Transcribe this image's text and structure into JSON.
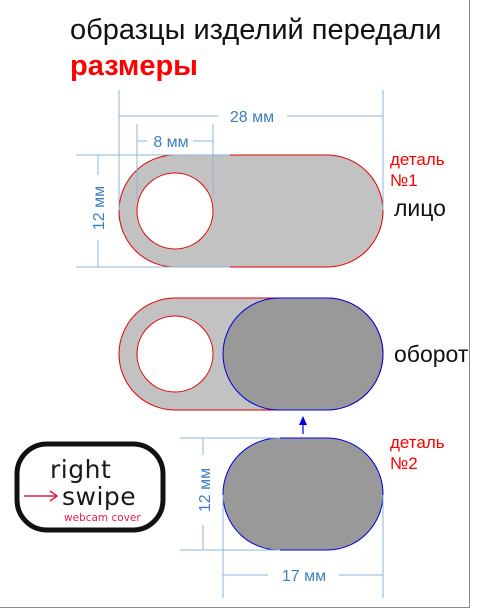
{
  "title": {
    "line1": "образцы изделий передали",
    "line2": "размеры"
  },
  "dimensions": {
    "total_length": "28 мм",
    "hole_offset": "8 мм",
    "height_front": "12 мм",
    "height_slider": "12 мм",
    "slider_length": "17 мм"
  },
  "parts": {
    "part1_label_line1": "деталь",
    "part1_label_line2": "№1",
    "part2_label_line1": "деталь",
    "part2_label_line2": "№2"
  },
  "sides": {
    "front": "лицо",
    "back": "оборот"
  },
  "logo": {
    "word1": "right",
    "word2": "swipe",
    "subtitle": "webcam cover",
    "accent_color": "#e0204f"
  },
  "colors": {
    "light_gray": "#c2c2c2",
    "dark_gray": "#999999",
    "outline_red": "#e00000",
    "outline_blue": "#0000dd",
    "dimension_blue": "#3f7fbf"
  }
}
